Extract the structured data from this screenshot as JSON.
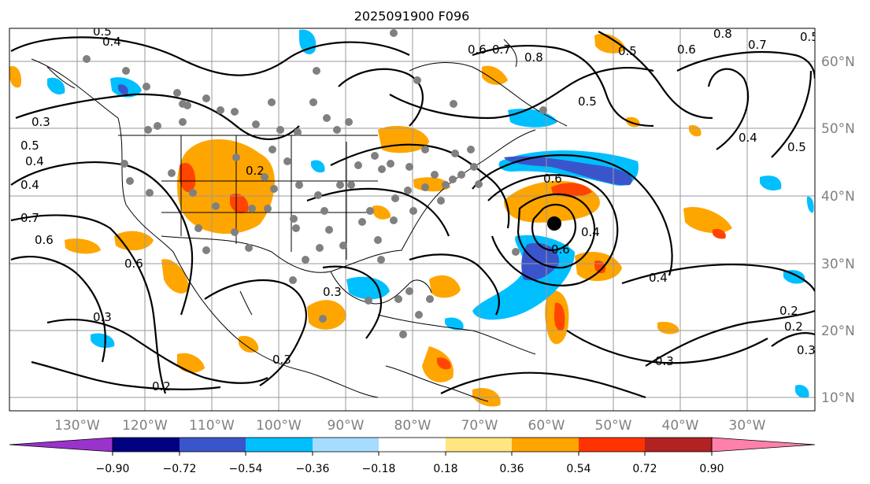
{
  "title": "2025091900 F096",
  "lon_labels": [
    "130°W",
    "120°W",
    "110°W",
    "100°W",
    "90°W",
    "80°W",
    "70°W",
    "60°W",
    "50°W",
    "40°W",
    "30°W"
  ],
  "lat_labels": [
    "60°N",
    "50°N",
    "40°N",
    "30°N",
    "20°N",
    "10°N"
  ],
  "colorbar": {
    "ticks": [
      "−0.90",
      "−0.72",
      "−0.54",
      "−0.36",
      "−0.18",
      "0.18",
      "0.36",
      "0.54",
      "0.72",
      "0.90"
    ],
    "colors": [
      "#9933cc",
      "#000080",
      "#3a55cc",
      "#00bfff",
      "#a6dcff",
      "#ffffff",
      "#ffe680",
      "#ffa500",
      "#ff3300",
      "#b22222",
      "#ff80aa"
    ]
  },
  "contour_labels": [
    "0.5",
    "0.4",
    "0.6",
    "0.3",
    "0.4",
    "0.5",
    "0.7",
    "0.6",
    "0.6",
    "0.3",
    "0.2",
    "0.3",
    "0.2",
    "0.6",
    "0.3",
    "0.8",
    "0.7",
    "0.6",
    "0.7",
    "0.8",
    "0.5",
    "0.5",
    "0.4",
    "0.5",
    "0.6",
    "0.4",
    "0.4",
    "0.3",
    "0.2",
    "0.3",
    "0.2",
    "0.4",
    "0.5"
  ],
  "shade_colors": {
    "orange": "#ffa500",
    "red": "#ff4500",
    "cyan": "#00bfff",
    "blue": "#3a55cc",
    "black": "#000000",
    "gray": "#808080"
  }
}
